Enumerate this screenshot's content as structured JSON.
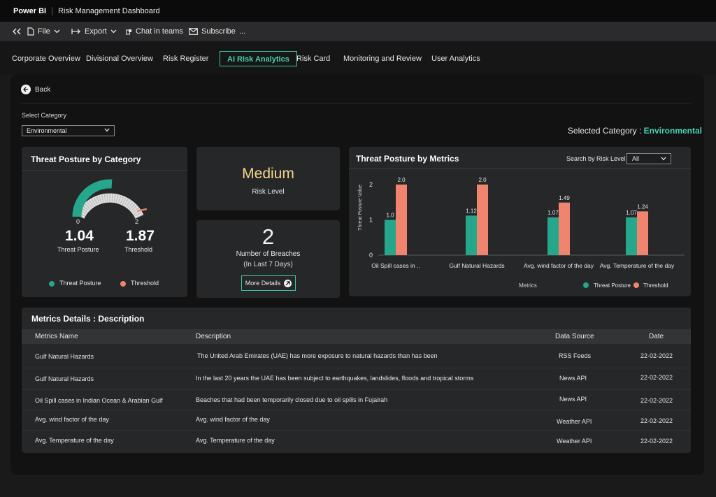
{
  "titlebar": {
    "brand": "Power BI",
    "report_name": "Risk Management Dashboard"
  },
  "toolbar": {
    "file_label": "File",
    "export_label": "Export",
    "chat_label": "Chat in teams",
    "subscribe_label": "Subscribe",
    "more_label": "..."
  },
  "tabs": [
    {
      "label": "Corporate Overview",
      "active": false
    },
    {
      "label": "Divisional Overview",
      "active": false
    },
    {
      "label": "Risk Register",
      "active": false
    },
    {
      "label": "AI Risk Analytics",
      "active": true
    },
    {
      "label": "Risk Card",
      "active": false
    },
    {
      "label": "Monitoring and Review",
      "active": false
    },
    {
      "label": "User Analytics",
      "active": false
    }
  ],
  "back_label": "Back",
  "category": {
    "label": "Select Category",
    "value": "Environmental",
    "selected_prefix": "Selected  Category :",
    "selected_value": "Environmental"
  },
  "threat_by_category": {
    "title": "Threat Posture by Category",
    "gauge_min": "0",
    "gauge_max": "2",
    "gauge_min_value": 0,
    "gauge_max_value": 2,
    "threat_posture_value": "1.04",
    "threat_posture_label": "Threat Posture",
    "threshold_value": "1.87",
    "threshold_label": "Threshold",
    "legend": [
      {
        "label": "Threat Posture",
        "color": "#26a68a"
      },
      {
        "label": "Threshold",
        "color": "#f0846f"
      }
    ]
  },
  "risk_level": {
    "value": "Medium",
    "label": "Risk Level",
    "value_color": "#f5d58c"
  },
  "breaches": {
    "count": "2",
    "label": "Number of  Breaches",
    "sublabel": "(In Last 7 Days)",
    "button_label": "More Details"
  },
  "threat_by_metrics": {
    "title": "Threat Posture by Metrics",
    "search_label": "Search by Risk Level",
    "search_value": "All"
  },
  "chart_data": {
    "type": "bar",
    "title": "Threat Posture by Metrics",
    "xlabel": "Metrics",
    "ylabel": "Threat Posture Value",
    "categories": [
      "Oil Spill cases in ..",
      "Gulf Natural Hazards",
      "Avg. wind factor of the day",
      "Avg. Temperature of the day"
    ],
    "series": [
      {
        "name": "Threat Posture",
        "color": "#26a68a",
        "values": [
          1.0,
          1.12,
          1.07,
          1.07
        ],
        "labels": [
          "1.0",
          "1.12",
          "1.07",
          "1.07"
        ]
      },
      {
        "name": "Threshold",
        "color": "#f0846f",
        "values": [
          2.0,
          2.0,
          1.49,
          1.24
        ],
        "labels": [
          "2.0",
          "2.0",
          "1.49",
          "1.24"
        ]
      }
    ],
    "ylim": [
      0,
      2
    ],
    "yticks": [
      "2",
      "1",
      "0"
    ],
    "grid": false,
    "legend_position": "bottom-right"
  },
  "metrics_details": {
    "title": "Metrics Details : Description",
    "columns": [
      "Metrics Name",
      "Description",
      "Data Source",
      "Date"
    ],
    "rows": [
      {
        "name": "Gulf Natural Hazards",
        "description": "The United Arab Emirates (UAE) has more exposure to natural hazards than has been",
        "source": "RSS Feeds",
        "date": "22-02-2022"
      },
      {
        "name": "Gulf Natural Hazards",
        "description": "In the last 20 years the UAE has been subject to earthquakes, landslides, floods and tropical storms",
        "source": "News API",
        "date": "22-02-2022"
      },
      {
        "name": "Oil Spill cases in Indian Ocean & Arabian Gulf",
        "description": "Beaches that had been temporarily closed due to oil spills in Fujairah",
        "source": "News API",
        "date": "22-02-2022"
      },
      {
        "name": "Avg. wind factor of the day",
        "description": "Avg. wind factor of the day",
        "source": "Weather API",
        "date": "22-02-2022"
      },
      {
        "name": "Avg. Temperature of the day",
        "description": "Avg. Temperature of the day",
        "source": "Weather API",
        "date": "22-02-2022"
      }
    ]
  }
}
